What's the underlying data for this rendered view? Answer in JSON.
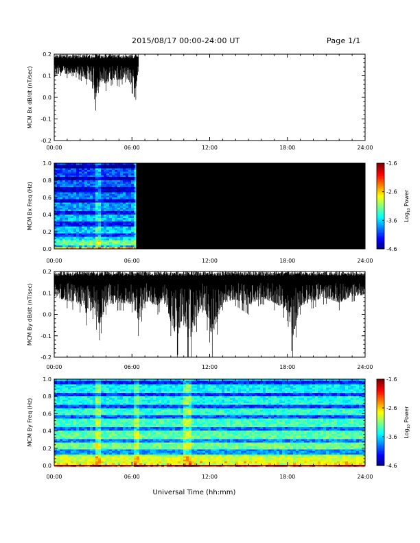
{
  "header": {
    "title": "2015/08/17  00:00-24:00 UT",
    "page": "Page 1/1"
  },
  "xaxis": {
    "label": "Universal Time (hh:mm)",
    "ticks": [
      "00:00",
      "06:00",
      "12:00",
      "18:00",
      "24:00"
    ]
  },
  "chart_data": [
    {
      "type": "line",
      "ylabel": "MCM Bx dB/dt (nT/sec)",
      "xlim": [
        0,
        24
      ],
      "ylim": [
        -0.2,
        0.2
      ],
      "yticks": [
        "0.2",
        "0.1",
        "0.0",
        "-0.1",
        "-0.2"
      ],
      "x_unit": "hours UT",
      "data_coverage_hours": [
        0,
        6.5
      ],
      "series": [
        {
          "x": [
            0.0,
            0.5,
            1.0,
            1.5,
            2.0,
            2.5,
            3.0,
            3.2,
            3.5,
            4.0,
            4.5,
            5.0,
            5.5,
            6.0,
            6.3,
            6.5
          ],
          "y_max": [
            0.2,
            0.2,
            0.2,
            0.2,
            0.2,
            0.2,
            0.2,
            0.2,
            0.2,
            0.2,
            0.2,
            0.2,
            0.2,
            0.2,
            0.2,
            0.2
          ],
          "y_min": [
            0.07,
            0.1,
            0.09,
            0.1,
            0.08,
            0.06,
            0.04,
            -0.06,
            0.05,
            0.03,
            0.06,
            0.05,
            0.07,
            0.02,
            -0.01,
            0.12
          ]
        }
      ]
    },
    {
      "type": "heatmap",
      "ylabel": "MCM Bx Freq (Hz)",
      "xlim": [
        0,
        24
      ],
      "ylim": [
        0,
        1
      ],
      "yticks": [
        "1.0",
        "0.8",
        "0.6",
        "0.4",
        "0.2",
        "0.0"
      ],
      "data_coverage_hours": [
        0,
        6.3
      ],
      "colorbar": {
        "label": "Log10 Power",
        "label_base": "Log",
        "label_sub": "10",
        "label_rest": " Power",
        "ticks": [
          "-1.6",
          "-2.6",
          "-3.6",
          "-4.6"
        ],
        "range": [
          -4.6,
          -1.6
        ]
      }
    },
    {
      "type": "line",
      "ylabel": "MCM By dB/dt (nT/sec)",
      "xlim": [
        0,
        24
      ],
      "ylim": [
        -0.2,
        0.2
      ],
      "yticks": [
        "0.2",
        "0.1",
        "0.0",
        "-0.1",
        "-0.2"
      ],
      "x_unit": "hours UT",
      "data_coverage_hours": [
        0,
        24
      ],
      "series": [
        {
          "x": [
            0,
            1,
            2,
            2.5,
            3,
            3.5,
            4,
            5,
            6,
            6.5,
            7,
            8,
            8.5,
            9,
            9.5,
            10,
            10.3,
            10.6,
            11,
            11.5,
            12,
            12.2,
            13,
            14,
            15,
            16,
            17,
            18,
            18.4,
            19,
            20,
            21,
            22,
            23,
            24
          ],
          "y_max": [
            0.2,
            0.2,
            0.2,
            0.2,
            0.2,
            0.2,
            0.2,
            0.2,
            0.2,
            0.2,
            0.2,
            0.2,
            0.2,
            0.2,
            0.2,
            0.2,
            0.2,
            0.2,
            0.2,
            0.2,
            0.2,
            0.2,
            0.2,
            0.2,
            0.2,
            0.2,
            0.2,
            0.2,
            0.2,
            0.2,
            0.2,
            0.2,
            0.2,
            0.2,
            0.2
          ],
          "y_min": [
            0.06,
            0.03,
            0.01,
            -0.05,
            -0.02,
            -0.12,
            0.0,
            0.02,
            0.01,
            -0.1,
            0.03,
            0.0,
            0.05,
            -0.1,
            -0.2,
            -0.05,
            -0.2,
            -0.2,
            -0.08,
            0.02,
            -0.13,
            -0.2,
            0.02,
            0.04,
            0.0,
            0.05,
            0.02,
            -0.03,
            -0.2,
            0.0,
            0.03,
            0.05,
            0.02,
            0.06,
            0.07
          ]
        }
      ]
    },
    {
      "type": "heatmap",
      "ylabel": "MCM By Freq (Hz)",
      "xlim": [
        0,
        24
      ],
      "ylim": [
        0,
        1
      ],
      "yticks": [
        "1.0",
        "0.8",
        "0.6",
        "0.4",
        "0.2",
        "0.0"
      ],
      "data_coverage_hours": [
        0,
        24
      ],
      "colorbar": {
        "label": "Log10 Power",
        "label_base": "Log",
        "label_sub": "10",
        "label_rest": " Power",
        "ticks": [
          "-1.6",
          "-2.6",
          "-3.6",
          "-4.6"
        ],
        "range": [
          -4.6,
          -1.6
        ]
      }
    }
  ]
}
